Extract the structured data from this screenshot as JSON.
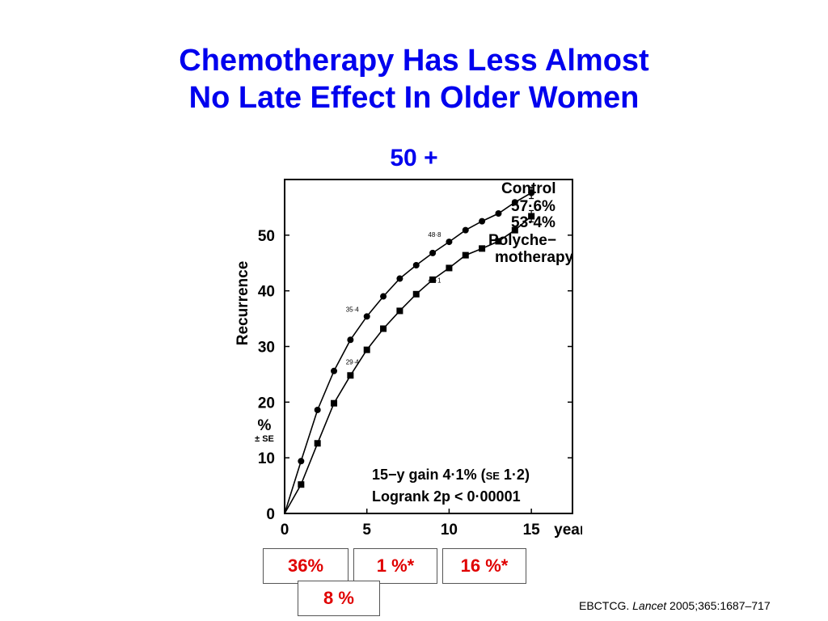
{
  "slide": {
    "title_line1": "Chemotherapy Has Less Almost",
    "title_line2": "No Late Effect In Older Women",
    "subtitle": "50 +",
    "boxes": [
      "36%",
      "1 %*",
      "16 %*",
      "8 %"
    ],
    "citation": {
      "prefix": "EBCTCG. ",
      "journal": "Lancet",
      "details": " 2005;365:1687–717"
    }
  },
  "chart_data": {
    "type": "line",
    "xlabel": "years",
    "ylabel": "Recurrence",
    "ylabel_unit": "%",
    "ylabel_se": "± SE",
    "xlim": [
      0,
      17.5
    ],
    "ylim": [
      0,
      60
    ],
    "xticks": [
      0,
      5,
      10,
      15
    ],
    "yticks": [
      0,
      10,
      20,
      30,
      40,
      50
    ],
    "series": [
      {
        "name": "Control",
        "final_label": "57·6%",
        "marker": "circle",
        "x": [
          0,
          1,
          2,
          3,
          4,
          5,
          6,
          7,
          8,
          9,
          10,
          11,
          12,
          13,
          14,
          15
        ],
        "values": [
          0,
          9.4,
          18.6,
          25.6,
          31.2,
          35.4,
          39.0,
          42.2,
          44.6,
          46.8,
          48.8,
          50.9,
          52.5,
          53.9,
          55.9,
          57.6
        ]
      },
      {
        "name": "Polychemotherapy",
        "name_line1": "Polyche−",
        "name_line2": "motherapy",
        "final_label": "53·4%",
        "marker": "square",
        "x": [
          0,
          1,
          2,
          3,
          4,
          5,
          6,
          7,
          8,
          9,
          10,
          11,
          12,
          13,
          14,
          15
        ],
        "values": [
          0,
          5.2,
          12.6,
          19.8,
          24.8,
          29.4,
          33.2,
          36.4,
          39.4,
          42.0,
          44.1,
          46.4,
          47.6,
          48.9,
          50.9,
          53.4
        ]
      }
    ],
    "point_labels": [
      {
        "text": "35·4",
        "x": 5,
        "y": 35.4
      },
      {
        "text": "48·8",
        "x": 10,
        "y": 48.8
      },
      {
        "text": "29·4",
        "x": 5,
        "y": 29.4
      },
      {
        "text": "44·1",
        "x": 10,
        "y": 44.1
      }
    ],
    "annotations": {
      "gain_prefix": "15−y gain 4·1% (",
      "gain_se": "SE",
      "gain_suffix": " 1·2)",
      "logrank": "Logrank 2p < 0·00001"
    }
  }
}
